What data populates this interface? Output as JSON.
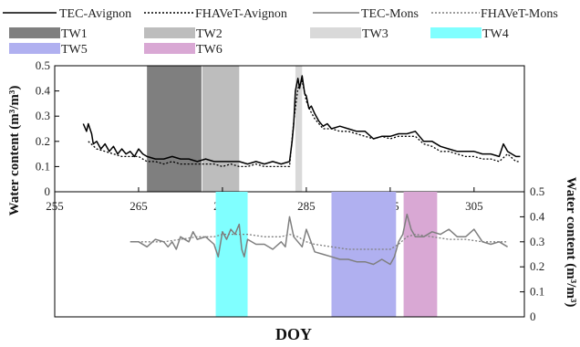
{
  "chart_data": {
    "type": "line",
    "x_label": "DOY",
    "x_ticks": [
      "255",
      "265",
      "275",
      "285",
      "295",
      "305"
    ],
    "xlim": [
      255,
      311
    ],
    "legend": {
      "series": [
        {
          "name": "TEC-Avignon",
          "color": "#000000",
          "dash": "solid"
        },
        {
          "name": "FHAVeT-Avignon",
          "color": "#000000",
          "dash": "dotted"
        },
        {
          "name": "TEC-Mons",
          "color": "#7f7f7f",
          "dash": "solid"
        },
        {
          "name": "FHAVeT-Mons",
          "color": "#7f7f7f",
          "dash": "dotted"
        }
      ],
      "windows": [
        {
          "name": "TW1",
          "color": "#7f7f7f"
        },
        {
          "name": "TW2",
          "color": "#bdbdbd"
        },
        {
          "name": "TW3",
          "color": "#d9d9d9"
        },
        {
          "name": "TW4",
          "color": "#80ffff"
        },
        {
          "name": "TW5",
          "color": "#b0b0f0"
        },
        {
          "name": "TW6",
          "color": "#d9a8d4"
        }
      ]
    },
    "panels": [
      {
        "site": "Avignon",
        "y_label": "Water content (m³/m³)",
        "y_ticks": [
          "0",
          "0.1",
          "0.2",
          "0.3",
          "0.4",
          "0.5"
        ],
        "ylim": [
          0,
          0.5
        ],
        "time_windows": [
          {
            "name": "TW1",
            "start": 266,
            "end": 272.5
          },
          {
            "name": "TW2",
            "start": 272.6,
            "end": 277
          },
          {
            "name": "TW3",
            "start": 283.7,
            "end": 284.5
          }
        ],
        "series": [
          {
            "name": "TEC-Avignon",
            "x": [
              258.4,
              258.8,
              259,
              259.4,
              259.6,
              260,
              260.5,
              261,
              261.5,
              262,
              262.5,
              263,
              263.5,
              264,
              264.5,
              265,
              265.5,
              266,
              267,
              268,
              269,
              270,
              271,
              272,
              273,
              274,
              275,
              276,
              277,
              278,
              279,
              280,
              281,
              282,
              283,
              283.3,
              283.5,
              283.7,
              284,
              284.2,
              284.5,
              284.8,
              285,
              285.3,
              285.6,
              286,
              286.5,
              287,
              287.5,
              288,
              289,
              290,
              291,
              292,
              293,
              294,
              295,
              296,
              297,
              298,
              299,
              300,
              301,
              302,
              303,
              304,
              305,
              306,
              307,
              308,
              308.5,
              309,
              309.5,
              310,
              310.5
            ],
            "y": [
              0.27,
              0.24,
              0.27,
              0.23,
              0.19,
              0.2,
              0.17,
              0.19,
              0.16,
              0.18,
              0.15,
              0.17,
              0.15,
              0.16,
              0.14,
              0.17,
              0.15,
              0.14,
              0.13,
              0.13,
              0.14,
              0.13,
              0.13,
              0.12,
              0.13,
              0.12,
              0.12,
              0.12,
              0.12,
              0.11,
              0.12,
              0.11,
              0.12,
              0.11,
              0.12,
              0.2,
              0.27,
              0.4,
              0.45,
              0.41,
              0.46,
              0.39,
              0.38,
              0.33,
              0.34,
              0.31,
              0.28,
              0.26,
              0.27,
              0.25,
              0.26,
              0.25,
              0.24,
              0.24,
              0.21,
              0.22,
              0.22,
              0.23,
              0.23,
              0.24,
              0.2,
              0.2,
              0.18,
              0.17,
              0.16,
              0.16,
              0.16,
              0.15,
              0.15,
              0.14,
              0.19,
              0.16,
              0.15,
              0.14,
              0.14
            ]
          },
          {
            "name": "FHAVeT-Avignon",
            "x": [
              259,
              260,
              261,
              262,
              263,
              264,
              265,
              266,
              267,
              268,
              269,
              270,
              271,
              272,
              273,
              274,
              275,
              276,
              277,
              278,
              279,
              280,
              281,
              282,
              283,
              283.5,
              284,
              284.5,
              285,
              285.5,
              286,
              287,
              288,
              289,
              290,
              291,
              292,
              293,
              294,
              295,
              296,
              297,
              298,
              299,
              300,
              301,
              302,
              303,
              304,
              305,
              306,
              307,
              308,
              309,
              310,
              310.5
            ],
            "y": [
              0.2,
              0.17,
              0.16,
              0.15,
              0.14,
              0.14,
              0.14,
              0.12,
              0.12,
              0.11,
              0.12,
              0.11,
              0.11,
              0.11,
              0.11,
              0.11,
              0.1,
              0.11,
              0.1,
              0.1,
              0.11,
              0.1,
              0.1,
              0.1,
              0.1,
              0.28,
              0.41,
              0.44,
              0.36,
              0.32,
              0.29,
              0.25,
              0.25,
              0.24,
              0.24,
              0.23,
              0.22,
              0.21,
              0.22,
              0.21,
              0.22,
              0.22,
              0.22,
              0.19,
              0.18,
              0.16,
              0.16,
              0.15,
              0.14,
              0.14,
              0.13,
              0.13,
              0.12,
              0.15,
              0.12,
              0.12
            ]
          }
        ]
      },
      {
        "site": "Mons",
        "y_label": "Water content (m³/m³)",
        "y_ticks": [
          "0",
          "0.1",
          "0.2",
          "0.3",
          "0.4",
          "0.5"
        ],
        "ylim": [
          0,
          0.5
        ],
        "time_windows": [
          {
            "name": "TW4",
            "start": 274.2,
            "end": 278
          },
          {
            "name": "TW5",
            "start": 288,
            "end": 295.7
          },
          {
            "name": "TW6",
            "start": 296.6,
            "end": 300.6
          }
        ],
        "series": [
          {
            "name": "TEC-Mons",
            "x": [
              264,
              265,
              266,
              267,
              268,
              268.5,
              269,
              269.5,
              270,
              271,
              271.5,
              272,
              273,
              274,
              274.5,
              275,
              275.5,
              276,
              276.5,
              277,
              277.3,
              277.6,
              278,
              279,
              280,
              281,
              282,
              282.5,
              283,
              283.5,
              284,
              284.5,
              285,
              286,
              287,
              288,
              289,
              290,
              291,
              292,
              293,
              294,
              295,
              295.5,
              296,
              296.5,
              297,
              297.5,
              298,
              299,
              300,
              301,
              302,
              303,
              304,
              305,
              306,
              307,
              308,
              309
            ],
            "y": [
              0.3,
              0.3,
              0.28,
              0.31,
              0.3,
              0.28,
              0.3,
              0.27,
              0.32,
              0.3,
              0.34,
              0.31,
              0.32,
              0.29,
              0.24,
              0.34,
              0.31,
              0.35,
              0.33,
              0.37,
              0.27,
              0.24,
              0.31,
              0.29,
              0.29,
              0.27,
              0.3,
              0.28,
              0.4,
              0.32,
              0.3,
              0.28,
              0.35,
              0.26,
              0.25,
              0.24,
              0.23,
              0.23,
              0.22,
              0.22,
              0.21,
              0.23,
              0.21,
              0.24,
              0.3,
              0.33,
              0.41,
              0.35,
              0.32,
              0.32,
              0.34,
              0.33,
              0.35,
              0.32,
              0.32,
              0.35,
              0.3,
              0.29,
              0.3,
              0.28
            ]
          },
          {
            "name": "FHAVeT-Mons",
            "x": [
              264,
              266,
              268,
              270,
              272,
              274,
              275,
              276,
              277,
              278,
              280,
              282,
              283,
              284,
              285,
              286,
              288,
              290,
              292,
              294,
              295,
              296,
              297,
              298,
              300,
              302,
              304,
              306,
              308,
              309
            ],
            "y": [
              0.3,
              0.3,
              0.3,
              0.31,
              0.32,
              0.32,
              0.33,
              0.33,
              0.33,
              0.33,
              0.32,
              0.32,
              0.33,
              0.32,
              0.3,
              0.29,
              0.28,
              0.27,
              0.27,
              0.27,
              0.27,
              0.29,
              0.32,
              0.33,
              0.32,
              0.31,
              0.31,
              0.3,
              0.3,
              0.3
            ]
          }
        ]
      }
    ]
  }
}
